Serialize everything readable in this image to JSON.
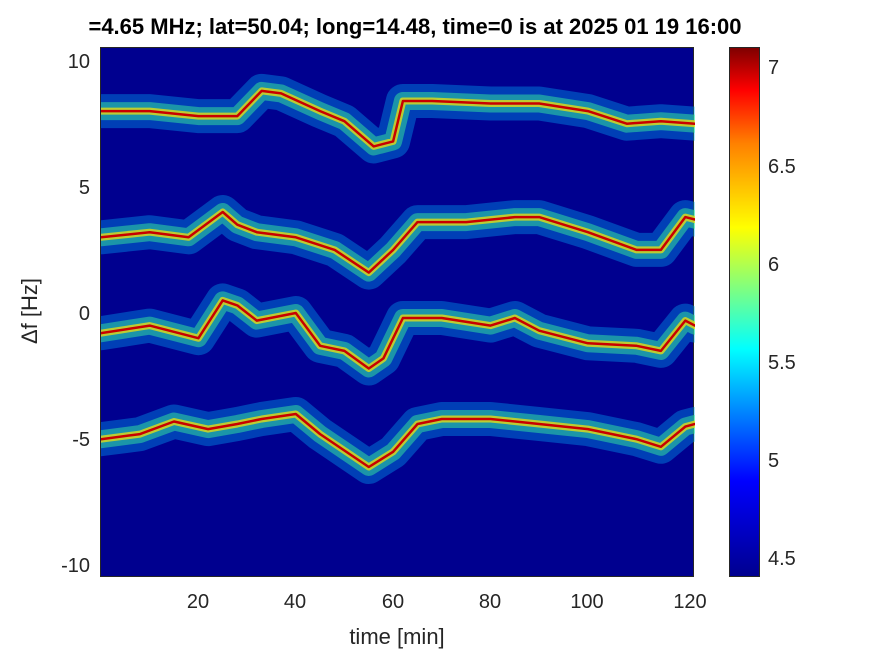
{
  "chart_data": {
    "type": "heatmap",
    "title": "=4.65 MHz;  lat=50.04; long=14.48, time=0 is at 2025 01 19 16:00",
    "xlabel": "time [min]",
    "ylabel": "Δf [Hz]",
    "xlim": [
      0,
      122
    ],
    "ylim": [
      -10.5,
      10.5
    ],
    "x_ticks": [
      "20",
      "40",
      "60",
      "80",
      "100",
      "120"
    ],
    "y_ticks": [
      "10",
      "5",
      "0",
      "-5",
      "-10"
    ],
    "colorbar": {
      "ticks": [
        "7",
        "6.5",
        "6",
        "5.5",
        "5",
        "4.5"
      ],
      "range": [
        4.4,
        7.1
      ],
      "colormap": "jet"
    },
    "traces": [
      {
        "name": "",
        "x": [
          0,
          10,
          20,
          28,
          33,
          37,
          45,
          50,
          56,
          60,
          62,
          68,
          80,
          90,
          100,
          108,
          115,
          122
        ],
        "y": [
          8.0,
          8.0,
          7.8,
          7.8,
          8.8,
          8.7,
          8.0,
          7.6,
          6.6,
          6.8,
          8.4,
          8.4,
          8.3,
          8.3,
          8.0,
          7.5,
          7.6,
          7.5
        ]
      },
      {
        "name": "",
        "x": [
          0,
          10,
          18,
          25,
          28,
          32,
          40,
          48,
          55,
          60,
          65,
          75,
          85,
          90,
          100,
          110,
          115,
          120,
          122
        ],
        "y": [
          3.0,
          3.2,
          3.0,
          4.0,
          3.5,
          3.2,
          3.0,
          2.5,
          1.6,
          2.5,
          3.6,
          3.6,
          3.8,
          3.8,
          3.2,
          2.5,
          2.5,
          3.8,
          3.7
        ]
      },
      {
        "name": "",
        "x": [
          0,
          10,
          20,
          25,
          28,
          32,
          40,
          45,
          50,
          55,
          58,
          62,
          70,
          80,
          85,
          90,
          100,
          110,
          115,
          120,
          122
        ],
        "y": [
          -0.8,
          -0.5,
          -1.0,
          0.5,
          0.3,
          -0.3,
          0,
          -1.3,
          -1.5,
          -2.2,
          -1.8,
          -0.2,
          -0.2,
          -0.5,
          -0.2,
          -0.7,
          -1.2,
          -1.3,
          -1.5,
          -0.3,
          -0.5
        ]
      },
      {
        "name": "",
        "x": [
          0,
          8,
          15,
          22,
          28,
          33,
          40,
          45,
          55,
          60,
          65,
          70,
          80,
          90,
          100,
          110,
          115,
          120,
          122
        ],
        "y": [
          -5.0,
          -4.8,
          -4.3,
          -4.6,
          -4.4,
          -4.2,
          -4.0,
          -4.8,
          -6.1,
          -5.5,
          -4.4,
          -4.2,
          -4.2,
          -4.4,
          -4.6,
          -5.0,
          -5.3,
          -4.5,
          -4.4
        ]
      }
    ]
  },
  "colors": {
    "background": "#00008f",
    "trace": "#c80000",
    "halo": "#ffe600"
  }
}
